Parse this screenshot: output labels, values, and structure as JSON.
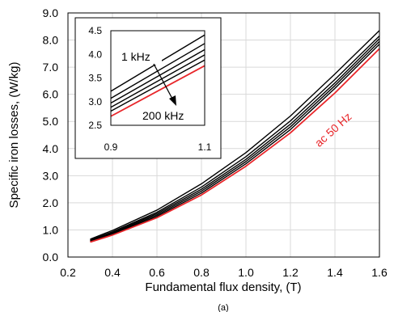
{
  "chart_data": {
    "type": "line",
    "xlabel": "Fundamental flux density, (T)",
    "ylabel": "Specific iron losses, (W/kg)",
    "xlim": [
      0.2,
      1.6
    ],
    "ylim": [
      0.0,
      9.0
    ],
    "xticks": [
      "0.2",
      "0.4",
      "0.6",
      "0.8",
      "1.0",
      "1.2",
      "1.4",
      "1.6"
    ],
    "yticks": [
      "0.0",
      "1.0",
      "2.0",
      "3.0",
      "4.0",
      "5.0",
      "6.0",
      "7.0",
      "8.0",
      "9.0"
    ],
    "grid": true,
    "x": [
      0.3,
      0.4,
      0.6,
      0.8,
      1.0,
      1.2,
      1.4,
      1.6
    ],
    "series": [
      {
        "values": [
          0.66,
          0.98,
          1.73,
          2.7,
          3.85,
          5.2,
          6.75,
          8.35
        ],
        "color": "#000000"
      },
      {
        "values": [
          0.63,
          0.93,
          1.65,
          2.58,
          3.7,
          5.02,
          6.55,
          8.15
        ],
        "color": "#000000"
      },
      {
        "values": [
          0.61,
          0.9,
          1.6,
          2.5,
          3.6,
          4.9,
          6.42,
          8.05
        ],
        "color": "#000000"
      },
      {
        "values": [
          0.59,
          0.87,
          1.55,
          2.43,
          3.52,
          4.8,
          6.32,
          7.95
        ],
        "color": "#000000"
      },
      {
        "values": [
          0.57,
          0.84,
          1.5,
          2.36,
          3.44,
          4.7,
          6.22,
          7.85
        ],
        "color": "#000000"
      },
      {
        "values": [
          0.55,
          0.81,
          1.45,
          2.29,
          3.35,
          4.58,
          6.05,
          7.68
        ],
        "color": "#e8262a"
      }
    ],
    "inset": {
      "xlim": [
        0.9,
        1.1
      ],
      "ylim": [
        2.5,
        4.5
      ],
      "xticks": [
        "0.9",
        "1.1"
      ],
      "yticks": [
        "2.5",
        "3.0",
        "3.5",
        "4.0",
        "4.5"
      ],
      "series": [
        {
          "values": [
            3.22,
            4.41
          ],
          "color": "#000000"
        },
        {
          "values": [
            3.07,
            4.23
          ],
          "color": "#000000"
        },
        {
          "values": [
            2.97,
            4.1
          ],
          "color": "#000000"
        },
        {
          "values": [
            2.88,
            3.99
          ],
          "color": "#000000"
        },
        {
          "values": [
            2.8,
            3.88
          ],
          "color": "#000000"
        },
        {
          "values": [
            2.69,
            3.76
          ],
          "color": "#e8262a"
        }
      ],
      "annotation_top": "1 kHz",
      "annotation_bottom": "200 kHz"
    },
    "annotation": "ac 50 Hz",
    "annotation_color": "#e8262a",
    "caption": "(a)"
  }
}
